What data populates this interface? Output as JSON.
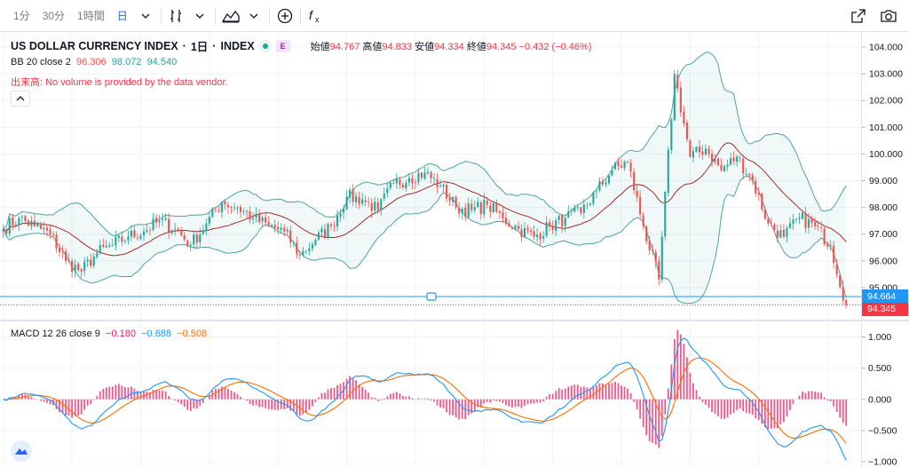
{
  "toolbar": {
    "intervals": [
      "1分",
      "30分",
      "1時間",
      "日"
    ],
    "active_interval": "日"
  },
  "legend": {
    "symbol": "US DOLLAR CURRENCY INDEX",
    "interval": "1日",
    "exchange": "INDEX",
    "badge_e": "E",
    "open_label": "始値",
    "open": "94.767",
    "high_label": "高値",
    "high": "94.833",
    "low_label": "安値",
    "low": "94.334",
    "close_label": "終値",
    "close": "94.345",
    "change": "−0.432 (−0.46%)",
    "bb_label": "BB 20 close 2",
    "bb_mid": "96.306",
    "bb_upper": "98.072",
    "bb_lower": "94.540",
    "volume_notice": "出来高: No volume is provided by the data vendor.",
    "macd_label": "MACD 12 26 close 9",
    "macd_hist": "−0.180",
    "macd_line": "−0.688",
    "macd_signal": "−0.508"
  },
  "price_axis": {
    "ticks": [
      "104.000",
      "103.000",
      "102.000",
      "101.000",
      "100.000",
      "99.000",
      "98.000",
      "97.000",
      "96.000",
      "95.000"
    ],
    "tag_line": "94.664",
    "tag_last": "94.345"
  },
  "macd_axis": {
    "ticks": [
      "1.000",
      "0.500",
      "0.000",
      "−0.500",
      "−1.000"
    ]
  },
  "colors": {
    "up": "#26a69a",
    "down": "#ef5350",
    "bb_band": "#4fa3a3",
    "bb_mid": "#a52a2a",
    "macd": "#2196f3",
    "signal": "#ff6d00",
    "hist": "#e91e63",
    "tag_line": "#2196f3",
    "tag_last": "#f23645"
  },
  "chart_data": [
    {
      "type": "candlestick",
      "title": "US DOLLAR CURRENCY INDEX",
      "ylim": [
        94.0,
        104.3
      ],
      "anchors_x": [
        0,
        5,
        10,
        15,
        20,
        25,
        30,
        35,
        40,
        45,
        50,
        55,
        60,
        65,
        70,
        75,
        80,
        85,
        90,
        95,
        100,
        105,
        110,
        115,
        120,
        125,
        130,
        135,
        140,
        145,
        150,
        155,
        160,
        165,
        170,
        175,
        180,
        185,
        190,
        195,
        200,
        205,
        210,
        215,
        220,
        225,
        230,
        235,
        240,
        245,
        250,
        255,
        260,
        265,
        270
      ],
      "anchors_close": [
        97.2,
        97.6,
        97.3,
        97.0,
        96.0,
        95.6,
        96.3,
        96.6,
        96.9,
        97.1,
        97.5,
        97.2,
        96.6,
        97.4,
        98.2,
        98.0,
        97.6,
        97.3,
        97.1,
        96.2,
        96.8,
        97.3,
        98.4,
        98.3,
        97.9,
        98.9,
        99.1,
        99.3,
        98.8,
        98.0,
        97.9,
        98.1,
        97.6,
        97.2,
        96.9,
        97.3,
        97.6,
        97.8,
        98.6,
        99.4,
        99.7,
        97.3,
        95.3,
        103.0,
        99.9,
        100.2,
        99.4,
        99.9,
        99.0,
        97.4,
        96.9,
        97.6,
        97.3,
        96.6,
        94.345
      ],
      "bb_mid_last": 96.306,
      "bb_upper_last": 98.072,
      "bb_lower_last": 94.54,
      "horizontal_line": 94.664,
      "last_close": 94.345
    },
    {
      "type": "line",
      "title": "MACD 12 26 close 9",
      "ylim": [
        -1.0,
        1.05
      ],
      "series": [
        {
          "name": "MACD",
          "last": -0.688
        },
        {
          "name": "Signal",
          "last": -0.508
        },
        {
          "name": "Histogram",
          "last": -0.18
        }
      ]
    }
  ]
}
